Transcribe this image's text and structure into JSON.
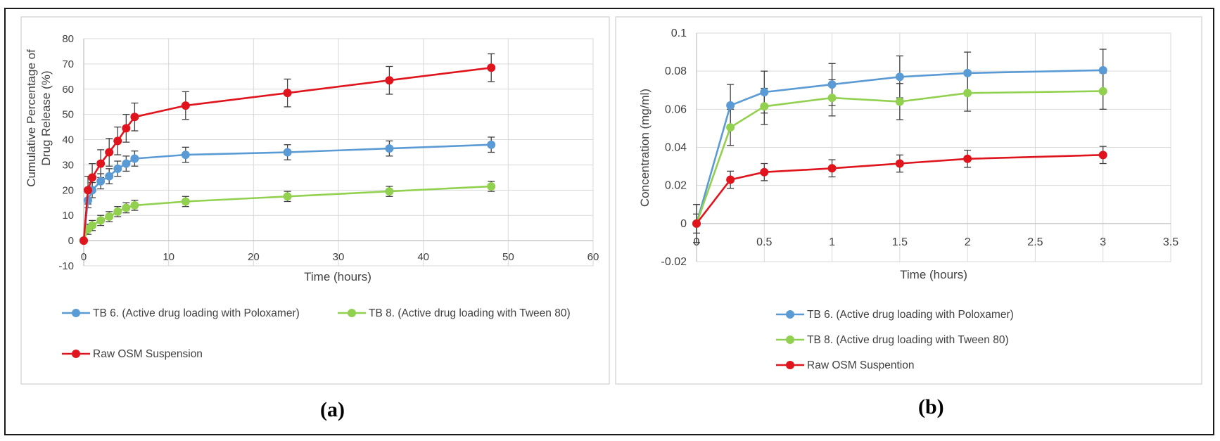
{
  "panels": [
    {
      "label": "(a)",
      "chart_data": {
        "type": "line",
        "title": "",
        "xlabel": "Time (hours)",
        "ylabel": "Cumulative Percentage of Drug Release (%)",
        "ylabel_lines": [
          "Cumulative Percentage of",
          "Drug Release (%)"
        ],
        "xlim": [
          0,
          60
        ],
        "ylim": [
          -10,
          80
        ],
        "x_ticks": [
          0,
          10,
          20,
          30,
          40,
          50,
          60
        ],
        "y_ticks": [
          -10,
          0,
          10,
          20,
          30,
          40,
          50,
          60,
          70,
          80
        ],
        "grid": true,
        "legend_position": "bottom",
        "series": [
          {
            "name": "TB 6. (Active drug loading with Poloxamer)",
            "color": "#5b9bd5",
            "x": [
              0,
              0.5,
              1,
              2,
              3,
              4,
              5,
              6,
              12,
              24,
              36,
              48
            ],
            "y": [
              0,
              16,
              20,
              23.5,
              25.5,
              28.5,
              30.5,
              32.5,
              34,
              35,
              36.5,
              38
            ],
            "err": [
              0,
              3,
              3,
              3,
              3,
              3,
              3,
              3,
              3,
              3,
              3,
              3
            ]
          },
          {
            "name": "TB 8. (Active drug loading with Tween 80)",
            "color": "#92d050",
            "x": [
              0,
              0.5,
              1,
              2,
              3,
              4,
              5,
              6,
              12,
              24,
              36,
              48
            ],
            "y": [
              0,
              4.5,
              6,
              8,
              9.5,
              11.5,
              13,
              14,
              15.5,
              17.5,
              19.5,
              21.5
            ],
            "err": [
              0,
              2,
              2,
              2,
              2,
              2,
              2,
              2,
              2,
              2,
              2,
              2
            ]
          },
          {
            "name": "Raw OSM Suspension",
            "color": "#e0141c",
            "x": [
              0,
              0.5,
              1,
              2,
              3,
              4,
              5,
              6,
              12,
              24,
              36,
              48
            ],
            "y": [
              0,
              20,
              25,
              30.5,
              35,
              39.5,
              44.5,
              49,
              53.5,
              58.5,
              63.5,
              68.5
            ],
            "err": [
              0,
              5.5,
              5.5,
              5.5,
              5.5,
              5.5,
              5.5,
              5.5,
              5.5,
              5.5,
              5.5,
              5.5
            ]
          }
        ]
      }
    },
    {
      "label": "(b)",
      "chart_data": {
        "type": "line",
        "title": "",
        "xlabel": "Time (hours)",
        "ylabel": "Concentration (mg/ml)",
        "xlim": [
          0,
          3.5
        ],
        "ylim": [
          -0.02,
          0.1
        ],
        "x_ticks": [
          0,
          0.5,
          1,
          1.5,
          2,
          2.5,
          3,
          3.5
        ],
        "y_ticks": [
          -0.02,
          0,
          0.02,
          0.04,
          0.06,
          0.08,
          0.1
        ],
        "grid": true,
        "legend_position": "bottom",
        "series": [
          {
            "name": "TB 6. (Active drug loading with Poloxamer)",
            "color": "#5b9bd5",
            "x": [
              0,
              0.25,
              0.5,
              1,
              1.5,
              2,
              3
            ],
            "y": [
              0,
              0.062,
              0.069,
              0.073,
              0.077,
              0.079,
              0.0805
            ],
            "err": [
              0.01,
              0.011,
              0.011,
              0.011,
              0.011,
              0.011,
              0.011
            ]
          },
          {
            "name": "TB 8. (Active drug loading with Tween 80)",
            "color": "#92d050",
            "x": [
              0,
              0.25,
              0.5,
              1,
              1.5,
              2,
              3
            ],
            "y": [
              0,
              0.0505,
              0.0615,
              0.066,
              0.064,
              0.0685,
              0.0695
            ],
            "err": [
              0.01,
              0.0095,
              0.0095,
              0.0095,
              0.0095,
              0.0095,
              0.0095
            ]
          },
          {
            "name": "Raw OSM Suspention",
            "color": "#e0141c",
            "x": [
              0,
              0.25,
              0.5,
              1,
              1.5,
              2,
              3
            ],
            "y": [
              0,
              0.023,
              0.027,
              0.029,
              0.0315,
              0.034,
              0.036
            ],
            "err": [
              0.005,
              0.0045,
              0.0045,
              0.0045,
              0.0045,
              0.0045,
              0.0045
            ]
          }
        ]
      }
    }
  ]
}
